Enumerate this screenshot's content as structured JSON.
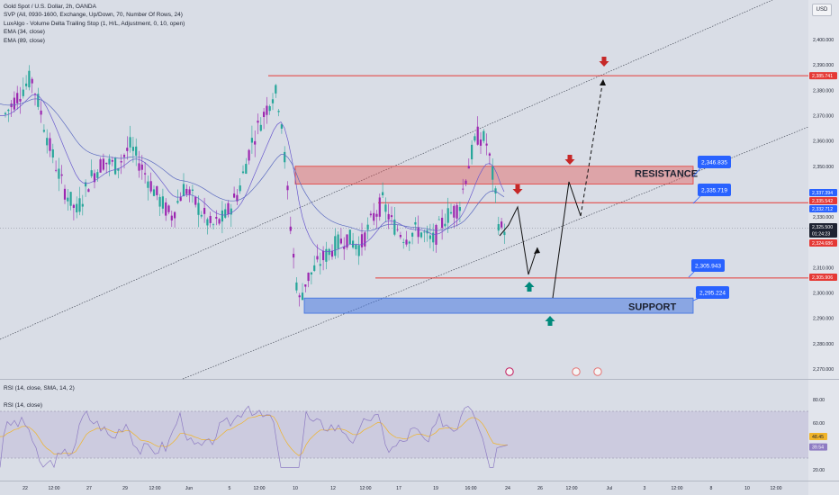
{
  "legend": {
    "title": "Gold Spot / U.S. Dollar, 2h, OANDA",
    "lines": [
      "SVP (All, 0930-1600, Exchange, Up/Down, 70, Number Of Rows, 24)",
      "LuxAlgo - Volume Delta Trailing Stop (1, H/L, Adjustment, 0, 10, open)",
      "EMA (34, close)",
      "EMA (89, close)"
    ]
  },
  "currency_button": "USD",
  "rsi_legend": [
    "RSI (14, close, SMA, 14, 2)",
    "RSI (14, close)"
  ],
  "annotations": {
    "resistance": "RESISTANCE",
    "support": "SUPPORT"
  },
  "price_axis_labels": [
    "2,400.000",
    "2,390.000",
    "2,380.000",
    "2,370.000",
    "2,360.000",
    "2,350.000",
    "2,340.000",
    "2,330.000",
    "2,320.000",
    "2,310.000",
    "2,300.000",
    "2,290.000",
    "2,280.000",
    "2,270.000"
  ],
  "rsi_axis_labels": [
    "80.00",
    "60.00",
    "40.00",
    "20.00"
  ],
  "time_axis_labels": [
    "22",
    "12:00",
    "27",
    "29",
    "12:00",
    "Jun",
    "5",
    "12:00",
    "10",
    "12",
    "12:00",
    "17",
    "19",
    "16:00",
    "24",
    "26",
    "12:00",
    "Jul",
    "3",
    "12:00",
    "8",
    "10",
    "12:00"
  ],
  "colors": {
    "background": "#d9dde6",
    "resistance": "#e53935",
    "support": "#3b6fe0",
    "callout": "#2962ff",
    "arrow_down": "#c62828",
    "arrow_up": "#00897b",
    "rsi_line": "#8e7cc3",
    "rsi_ma": "#f0b429"
  },
  "chart_data": {
    "type": "candlestick",
    "symbol": "Gold Spot / U.S. Dollar",
    "timeframe": "2h",
    "broker": "OANDA",
    "y_range": [
      2265,
      2405
    ],
    "horizontal_levels": [
      {
        "id": "top-level",
        "price": 2385.741,
        "label": "2,385.741",
        "color": "#e53935"
      },
      {
        "id": "resistance-callout",
        "price": 2346.835,
        "label": "2,346.835",
        "color": "#2962ff"
      },
      {
        "id": "mid-level",
        "price": 2335.719,
        "label": "2,335.719",
        "color": "#2962ff"
      },
      {
        "id": "support-upper",
        "price": 2305.943,
        "label": "2,305.943",
        "color": "#2962ff"
      },
      {
        "id": "support-lower",
        "price": 2295.224,
        "label": "2,295.224",
        "color": "#2962ff"
      }
    ],
    "zones": [
      {
        "name": "RESISTANCE",
        "from": 2343,
        "to": 2350
      },
      {
        "name": "SUPPORT",
        "from": 2292,
        "to": 2298
      }
    ],
    "price_tags": [
      {
        "value": "2,385.741",
        "color": "#e53935"
      },
      {
        "value": "2,337.394",
        "color": "#2962ff"
      },
      {
        "value": "2,335.542",
        "color": "#e53935"
      },
      {
        "value": "2,332.712",
        "color": "#2962ff"
      },
      {
        "value": "2,325.500",
        "color": "#1d2231",
        "sub": "01:24:23"
      },
      {
        "value": "2,324.686",
        "color": "#e53935"
      },
      {
        "value": "2,305.906",
        "color": "#e53935"
      }
    ],
    "rsi": {
      "y_range": [
        15,
        85
      ],
      "current_values": [
        {
          "value": "48.45",
          "color": "#f0b429"
        },
        {
          "value": "39.54",
          "color": "#8e7cc3"
        }
      ]
    }
  }
}
